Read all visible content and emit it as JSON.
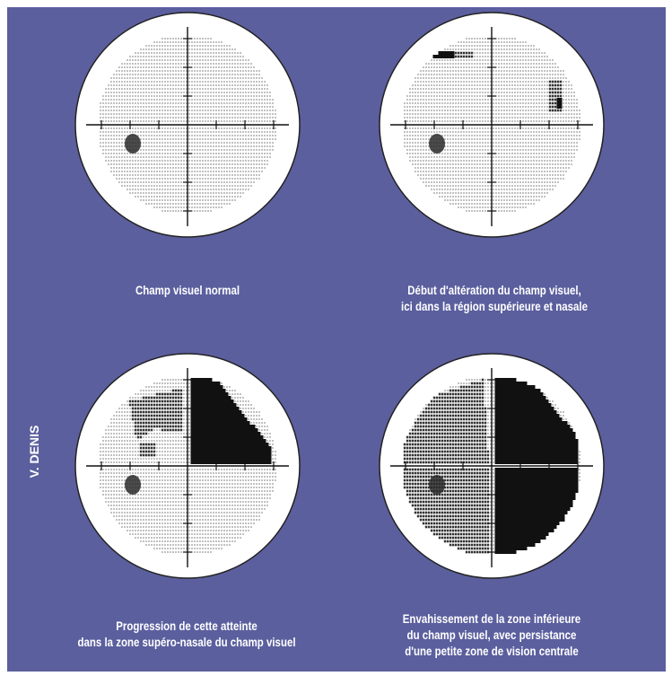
{
  "credit": "V. DENIS",
  "colors": {
    "background": "#5b5f9e",
    "disc": "#ffffff",
    "ink": "#111111",
    "caption": "#ffffff"
  },
  "panels": [
    {
      "id": "normal",
      "caption_lines": [
        "Champ visuel normal"
      ],
      "defect_level": 0
    },
    {
      "id": "early",
      "caption_lines": [
        "Début d'altération du champ visuel,",
        "ici dans la région supérieure et nasale"
      ],
      "defect_level": 1
    },
    {
      "id": "progression",
      "caption_lines": [
        "Progression de cette atteinte",
        "dans la zone supéro-nasale du champ visuel"
      ],
      "defect_level": 2
    },
    {
      "id": "invasion",
      "caption_lines": [
        "Envahissement de la zone inférieure",
        "du champ visuel, avec persistance",
        "d'une petite zone de vision centrale"
      ],
      "defect_level": 3
    }
  ]
}
